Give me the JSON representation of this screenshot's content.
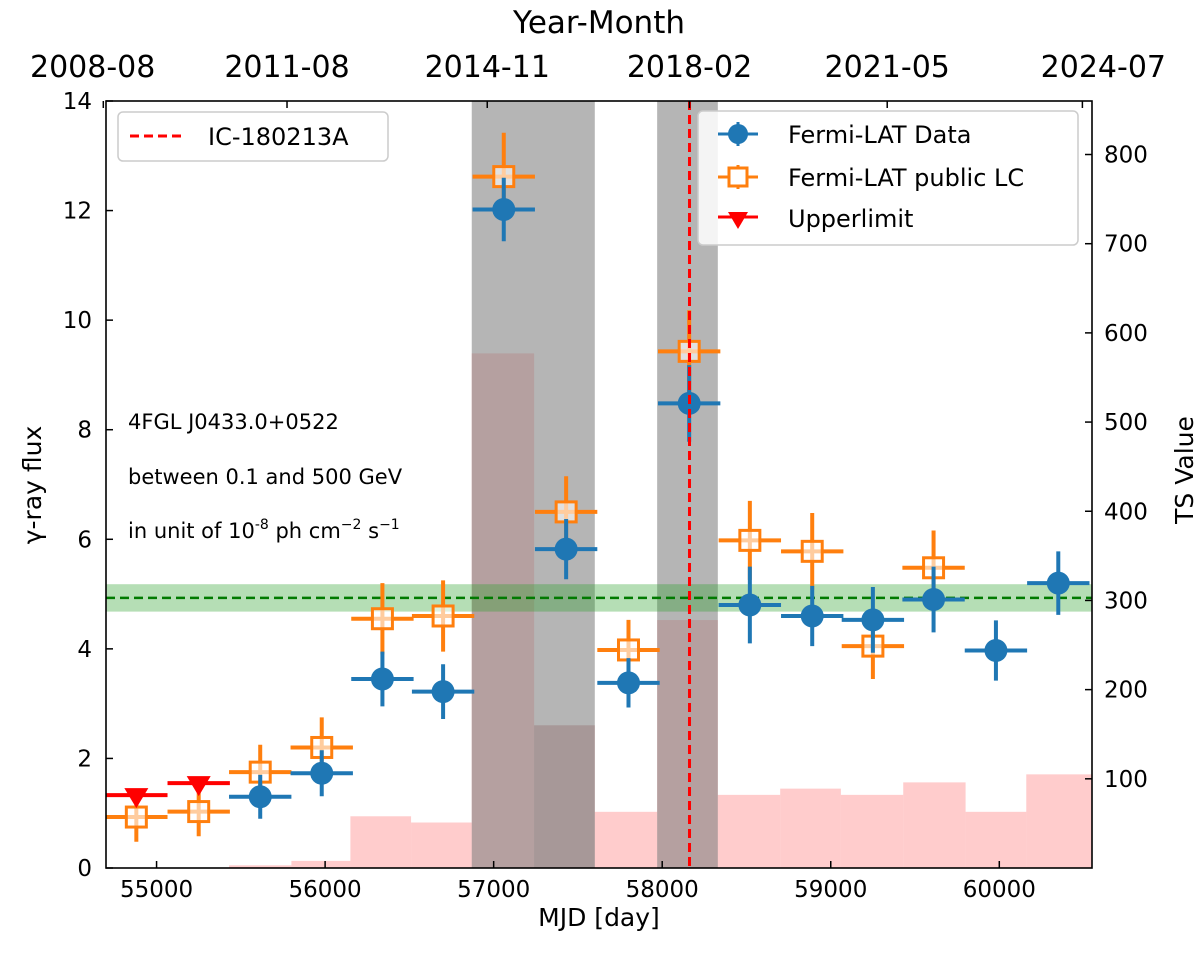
{
  "chart_data": {
    "type": "scatter",
    "xlabel": "MJD [day]",
    "ylabel": "γ-ray flux",
    "y2label": "TS Value",
    "top_axis_title": "Year-Month",
    "xlim": [
      54700,
      60550
    ],
    "ylim": [
      0,
      14
    ],
    "y2lim": [
      0,
      860
    ],
    "x_ticks": [
      55000,
      56000,
      57000,
      58000,
      59000,
      60000
    ],
    "x_tick_labels": [
      "55000",
      "56000",
      "57000",
      "58000",
      "59000",
      "60000"
    ],
    "y_ticks": [
      0,
      2,
      4,
      6,
      8,
      10,
      12,
      14
    ],
    "y_tick_labels": [
      "0",
      "2",
      "4",
      "6",
      "8",
      "10",
      "12",
      "14"
    ],
    "y2_ticks": [
      100,
      200,
      300,
      400,
      500,
      600,
      700,
      800
    ],
    "y2_tick_labels": [
      "100",
      "200",
      "300",
      "400",
      "500",
      "600",
      "700",
      "800"
    ],
    "top_ticks": [
      54684,
      55774,
      56962,
      58162,
      59335,
      60493
    ],
    "top_tick_labels": [
      "2008-08",
      "2011-08",
      "2014-11",
      "2018-02",
      "2021-05",
      "2024-07"
    ],
    "annotation_lines": [
      "4FGL J0433.0+0522",
      "between 0.1 and 500 GeV",
      "in unit of 10",
      "-8",
      " ph cm",
      "−2",
      " s",
      "−1"
    ],
    "legend_left": {
      "label": "IC-180213A",
      "position": "top-left"
    },
    "legend_right": {
      "position": "top-right",
      "items": [
        "Fermi-LAT Data",
        "Fermi-LAT public LC",
        "Upperlimit"
      ]
    },
    "neutrino_event_mjd": 58162,
    "mean_flux": 4.93,
    "mean_flux_band": [
      4.68,
      5.18
    ],
    "gray_regions": [
      {
        "x0": 56870,
        "x1": 57600,
        "ts_top": 860
      },
      {
        "x0": 57970,
        "x1": 58330,
        "ts_top": 860
      }
    ],
    "gray_region_lower": {
      "x0": 57240,
      "x1": 57600,
      "ts_top": 160
    },
    "ts_bins": [
      {
        "x0": 54700,
        "x1": 55430,
        "ts": 0
      },
      {
        "x0": 55430,
        "x1": 55800,
        "ts": 3
      },
      {
        "x0": 55800,
        "x1": 56150,
        "ts": 8
      },
      {
        "x0": 56150,
        "x1": 56510,
        "ts": 58
      },
      {
        "x0": 56510,
        "x1": 56870,
        "ts": 51
      },
      {
        "x0": 56870,
        "x1": 57240,
        "ts": 577
      },
      {
        "x0": 57240,
        "x1": 57600,
        "ts": 160
      },
      {
        "x0": 57600,
        "x1": 57970,
        "ts": 63
      },
      {
        "x0": 57970,
        "x1": 58330,
        "ts": 278
      },
      {
        "x0": 58330,
        "x1": 58700,
        "ts": 82
      },
      {
        "x0": 58700,
        "x1": 59060,
        "ts": 89
      },
      {
        "x0": 59060,
        "x1": 59430,
        "ts": 82
      },
      {
        "x0": 59430,
        "x1": 59800,
        "ts": 96
      },
      {
        "x0": 59800,
        "x1": 60160,
        "ts": 63
      },
      {
        "x0": 60160,
        "x1": 60550,
        "ts": 105
      }
    ],
    "series": [
      {
        "name": "Fermi-LAT Data",
        "color": "#1f77b4",
        "points": [
          {
            "x": 55615,
            "y": 1.3,
            "xerr": 185,
            "yerr": 0.4
          },
          {
            "x": 55980,
            "y": 1.73,
            "xerr": 185,
            "yerr": 0.42
          },
          {
            "x": 56340,
            "y": 3.45,
            "xerr": 185,
            "yerr": 0.5
          },
          {
            "x": 56700,
            "y": 3.22,
            "xerr": 185,
            "yerr": 0.5
          },
          {
            "x": 57060,
            "y": 12.02,
            "xerr": 185,
            "yerr": 0.58
          },
          {
            "x": 57430,
            "y": 5.82,
            "xerr": 185,
            "yerr": 0.55
          },
          {
            "x": 57800,
            "y": 3.38,
            "xerr": 185,
            "yerr": 0.45
          },
          {
            "x": 58160,
            "y": 8.48,
            "xerr": 185,
            "yerr": 0.7
          },
          {
            "x": 58520,
            "y": 4.8,
            "xerr": 185,
            "yerr": 0.7
          },
          {
            "x": 58890,
            "y": 4.6,
            "xerr": 185,
            "yerr": 0.55
          },
          {
            "x": 59250,
            "y": 4.53,
            "xerr": 185,
            "yerr": 0.6
          },
          {
            "x": 59610,
            "y": 4.9,
            "xerr": 185,
            "yerr": 0.6
          },
          {
            "x": 59980,
            "y": 3.97,
            "xerr": 185,
            "yerr": 0.55
          },
          {
            "x": 60350,
            "y": 5.2,
            "xerr": 185,
            "yerr": 0.58
          }
        ]
      },
      {
        "name": "Fermi-LAT public LC",
        "color": "#ff7f0e",
        "points": [
          {
            "x": 54880,
            "y": 0.93,
            "xerr": 185,
            "yerr": 0.45
          },
          {
            "x": 55250,
            "y": 1.03,
            "xerr": 185,
            "yerr": 0.45
          },
          {
            "x": 55615,
            "y": 1.75,
            "xerr": 185,
            "yerr": 0.5
          },
          {
            "x": 55980,
            "y": 2.2,
            "xerr": 185,
            "yerr": 0.55
          },
          {
            "x": 56340,
            "y": 4.55,
            "xerr": 185,
            "yerr": 0.65
          },
          {
            "x": 56700,
            "y": 4.6,
            "xerr": 185,
            "yerr": 0.65
          },
          {
            "x": 57060,
            "y": 12.62,
            "xerr": 185,
            "yerr": 0.8
          },
          {
            "x": 57430,
            "y": 6.5,
            "xerr": 185,
            "yerr": 0.65
          },
          {
            "x": 57800,
            "y": 3.98,
            "xerr": 185,
            "yerr": 0.55
          },
          {
            "x": 58160,
            "y": 9.43,
            "xerr": 185,
            "yerr": 0.75
          },
          {
            "x": 58520,
            "y": 5.98,
            "xerr": 185,
            "yerr": 0.72
          },
          {
            "x": 58890,
            "y": 5.78,
            "xerr": 185,
            "yerr": 0.7
          },
          {
            "x": 59250,
            "y": 4.05,
            "xerr": 185,
            "yerr": 0.6
          },
          {
            "x": 59610,
            "y": 5.48,
            "xerr": 185,
            "yerr": 0.68
          }
        ]
      },
      {
        "name": "Upperlimit",
        "color": "#ff0000",
        "points": [
          {
            "x": 54880,
            "y": 1.33,
            "xerr": 185
          },
          {
            "x": 55250,
            "y": 1.55,
            "xerr": 185
          }
        ]
      }
    ]
  }
}
